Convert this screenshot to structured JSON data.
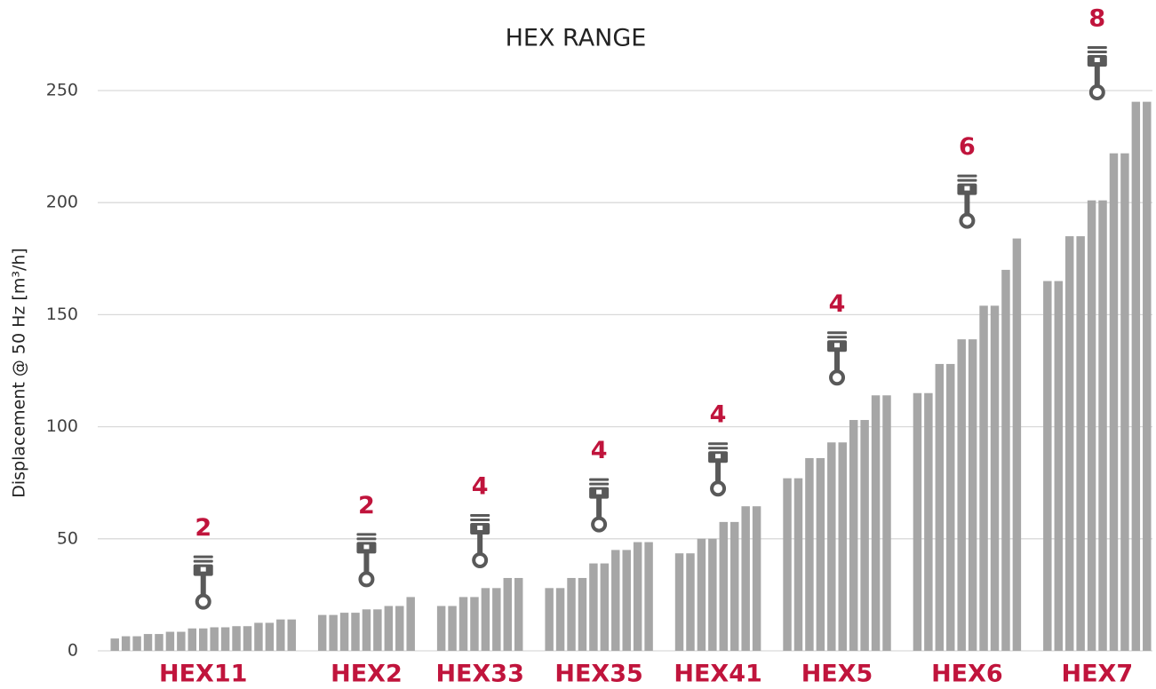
{
  "chart_data": {
    "type": "grouped-bar",
    "title": "HEX RANGE",
    "y_label": "Displacement @ 50 Hz [m³/h]",
    "color": "#a6a6a6",
    "label_color": "#c0143c",
    "ylim": [
      0,
      250
    ],
    "yticks": [
      0,
      50,
      100,
      150,
      200,
      250
    ],
    "grid": true,
    "groups": [
      {
        "name": "HEX11",
        "cylinders": 2,
        "values": [
          5.5,
          6.5,
          6.5,
          7.5,
          7.5,
          8.5,
          8.5,
          10,
          10,
          10.5,
          10.5,
          11,
          11,
          12.5,
          12.5,
          14,
          14
        ]
      },
      {
        "name": "HEX2",
        "cylinders": 2,
        "values": [
          16,
          16,
          17,
          17,
          18.5,
          18.5,
          20,
          20,
          24
        ]
      },
      {
        "name": "HEX33",
        "cylinders": 4,
        "values": [
          20,
          20,
          24,
          24,
          28,
          28,
          32.5,
          32.5
        ]
      },
      {
        "name": "HEX35",
        "cylinders": 4,
        "values": [
          28,
          28,
          32.5,
          32.5,
          39,
          39,
          45,
          45,
          48.5,
          48.5
        ]
      },
      {
        "name": "HEX41",
        "cylinders": 4,
        "values": [
          43.5,
          43.5,
          50,
          50,
          57.5,
          57.5,
          64.5,
          64.5
        ]
      },
      {
        "name": "HEX5",
        "cylinders": 4,
        "values": [
          77,
          77,
          86,
          86,
          93,
          93,
          103,
          103,
          114,
          114
        ]
      },
      {
        "name": "HEX6",
        "cylinders": 6,
        "values": [
          115,
          115,
          128,
          128,
          139,
          139,
          154,
          154,
          170,
          184
        ]
      },
      {
        "name": "HEX7",
        "cylinders": 8,
        "values": [
          165,
          165,
          185,
          185,
          201,
          201,
          222,
          222,
          245,
          245
        ]
      }
    ]
  }
}
